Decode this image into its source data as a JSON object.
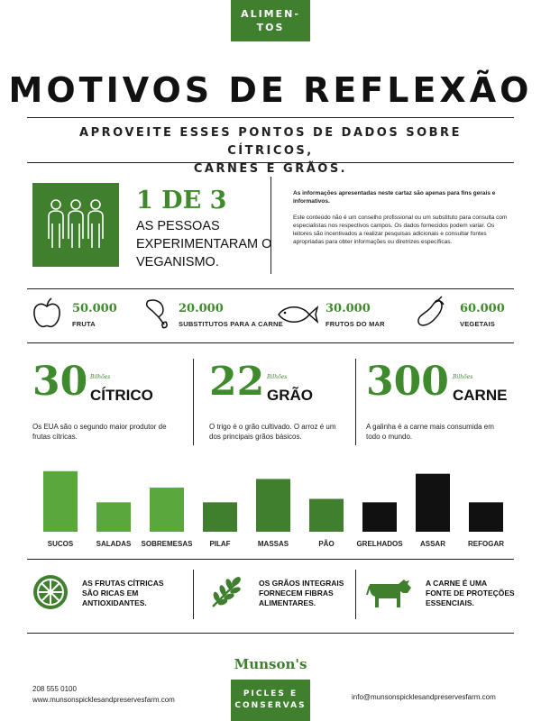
{
  "header": {
    "badge_line1": "ALIMEN-",
    "badge_line2": "TOS"
  },
  "title": "MOTIVOS DE REFLEXÃO",
  "subtitle_line1": "APROVEITE ESSES PONTOS DE DADOS SOBRE CÍTRICOS,",
  "subtitle_line2": "CARNES E GRÃOS.",
  "highlight": {
    "number": "1 DE 3",
    "text_line1": "AS PESSOAS",
    "text_line2": "EXPERIMENTARAM O",
    "text_line3": "VEGANISMO."
  },
  "disclaimer": {
    "p1": "As informações apresentadas neste cartaz são apenas para fins gerais e informativos.",
    "p2": "Este conteúdo não é um conselho profissional ou um substituto para consulta com especialistas nos respectivos campos. Os dados fornecidos podem variar. Os leitores são incentivados a realizar pesquisas adicionais e consultar fontes apropriadas para obter informações ou diretrizes específicas."
  },
  "stats": [
    {
      "value": "50.000",
      "label": "FRUTA",
      "icon": "apple-icon"
    },
    {
      "value": "20.000",
      "label": "SUBSTITUTOS PARA A CARNE",
      "icon": "drumstick-icon"
    },
    {
      "value": "30.000",
      "label": "FRUTOS DO MAR",
      "icon": "fish-icon"
    },
    {
      "value": "60.000",
      "label": "VEGETAIS",
      "icon": "eggplant-icon"
    }
  ],
  "categories": [
    {
      "number": "30",
      "unit": "Bilhões",
      "name": "CÍTRICO",
      "desc": "Os EUA são o segundo maior produtor de frutas cítricas."
    },
    {
      "number": "22",
      "unit": "Bilhões",
      "name": "GRÃO",
      "desc": "O trigo é o grão cultivado. O arroz é um dos principais grãos básicos."
    },
    {
      "number": "300",
      "unit": "Bilhões",
      "name": "CARNE",
      "desc": "A galinha é a carne mais consumida em todo o mundo."
    }
  ],
  "chart_data": {
    "type": "bar",
    "categories": [
      "SUCOS",
      "SALADAS",
      "SOBREMESAS",
      "PILAF",
      "MASSAS",
      "PÃO",
      "GRELHADOS",
      "ASSAR",
      "REFOGAR"
    ],
    "values": [
      70,
      34,
      51,
      34,
      61,
      38,
      34,
      67,
      34
    ],
    "colors": [
      "#5aa83c",
      "#5aa83c",
      "#5aa83c",
      "#3f7f2e",
      "#3f7f2e",
      "#3f7f2e",
      "#111111",
      "#111111",
      "#111111"
    ],
    "title": "",
    "xlabel": "",
    "ylabel": "",
    "ylim": [
      0,
      75
    ],
    "grid": false
  },
  "facts": [
    {
      "icon": "lime-slice-icon",
      "line1": "AS FRUTAS CÍTRICAS",
      "line2": "SÃO RICAS EM",
      "line3": "ANTIOXIDANTES."
    },
    {
      "icon": "wheat-icon",
      "line1": "OS GRÃOS INTEGRAIS",
      "line2": "FORNECEM FIBRAS",
      "line3": "ALIMENTARES."
    },
    {
      "icon": "cow-icon",
      "line1": "A CARNE É UMA",
      "line2": "FONTE DE PROTEÇÕES",
      "line3": "ESSENCIAIS."
    }
  ],
  "footer": {
    "brand": "Munson's",
    "badge_line1": "PICLES E",
    "badge_line2": "CONSERVAS",
    "phone": "208 555 0100",
    "website": "www.munsonspicklesandpreservesfarm.com",
    "email": "info@munsonspicklesandpreservesfarm.com"
  },
  "colors": {
    "green": "#3f7f2e",
    "light_green": "#5aa83c",
    "black": "#111111"
  }
}
